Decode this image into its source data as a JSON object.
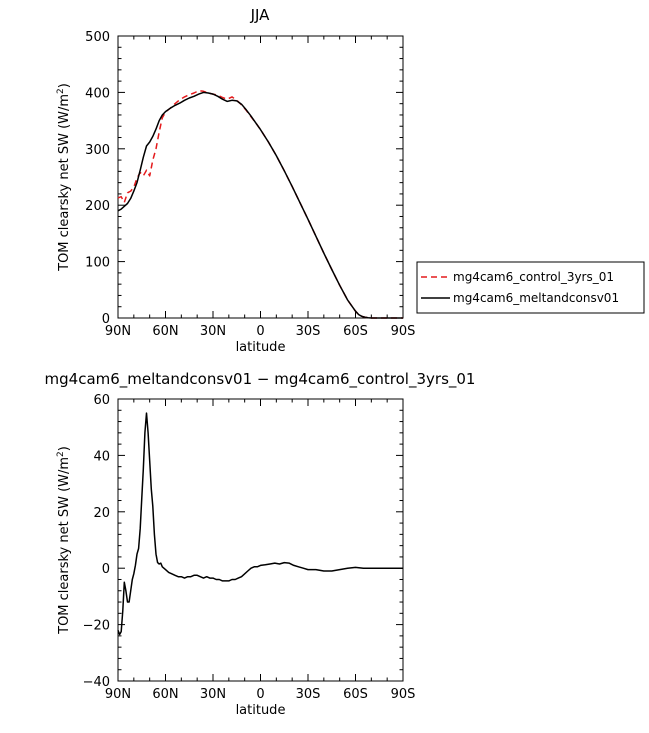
{
  "figure": {
    "top_title": "JJA",
    "bottom_title": "mg4cam6_meltandconsv01 − mg4cam6_control_3yrs_01"
  },
  "chart_data": [
    {
      "type": "line",
      "title": "JJA",
      "xlabel": "latitude",
      "ylabel": "TOM clearsky net SW (W/m²)",
      "ylabel_main": "TOM clearsky net SW (W/m",
      "ylabel_sup": "2",
      "ylabel_close": ")",
      "xlim": [
        90,
        -90
      ],
      "ylim": [
        0,
        500
      ],
      "xticks": [
        90,
        60,
        30,
        0,
        -30,
        -60,
        -90
      ],
      "xtick_labels": [
        "90N",
        "60N",
        "30N",
        "0",
        "30S",
        "60S",
        "90S"
      ],
      "yticks": [
        0,
        100,
        200,
        300,
        400,
        500
      ],
      "ytick_labels": [
        "0",
        "100",
        "200",
        "300",
        "400",
        "500"
      ],
      "legend": "right",
      "series": [
        {
          "name": "mg4cam6_control_3yrs_01",
          "color": "#e41a1c",
          "dash": "dashed",
          "x": [
            90,
            88,
            86,
            84,
            82,
            80,
            78,
            76,
            74,
            72,
            70,
            68,
            66,
            64,
            62,
            60,
            57,
            54,
            51,
            48,
            45,
            42,
            39,
            36,
            33,
            30,
            27,
            24,
            21,
            18,
            15,
            12,
            9,
            6,
            3,
            0,
            -5,
            -10,
            -15,
            -20,
            -25,
            -30,
            -35,
            -40,
            -45,
            -50,
            -55,
            -60,
            -62,
            -64,
            -66,
            -68,
            -70,
            -72,
            -75,
            -80,
            -85,
            -90
          ],
          "y": [
            213,
            215,
            205,
            222,
            225,
            232,
            248,
            258,
            252,
            262,
            252,
            280,
            300,
            330,
            355,
            365,
            372,
            380,
            387,
            392,
            396,
            399,
            403,
            402,
            399,
            397,
            395,
            391,
            388,
            392,
            386,
            378,
            368,
            357,
            346,
            334,
            312,
            288,
            261,
            233,
            204,
            175,
            145,
            115,
            86,
            58,
            32,
            12,
            6,
            3,
            1.5,
            0.5,
            0,
            0,
            0,
            0,
            0,
            0
          ]
        },
        {
          "name": "mg4cam6_meltandconsv01",
          "color": "#000000",
          "dash": "solid",
          "x": [
            90,
            88,
            86,
            84,
            82,
            80,
            78,
            76,
            74,
            72,
            70,
            68,
            66,
            64,
            62,
            60,
            57,
            54,
            51,
            48,
            45,
            42,
            39,
            36,
            33,
            30,
            27,
            24,
            21,
            18,
            15,
            12,
            9,
            6,
            3,
            0,
            -5,
            -10,
            -15,
            -20,
            -25,
            -30,
            -35,
            -40,
            -45,
            -50,
            -55,
            -60,
            -62,
            -64,
            -66,
            -68,
            -70,
            -72,
            -75,
            -80,
            -85,
            -90
          ],
          "y": [
            190,
            193,
            198,
            203,
            212,
            225,
            240,
            262,
            285,
            305,
            312,
            322,
            335,
            350,
            360,
            366,
            372,
            377,
            381,
            386,
            390,
            393,
            397,
            400,
            399,
            397,
            393,
            388,
            384,
            386,
            385,
            379,
            369,
            358,
            346,
            334,
            312,
            288,
            261,
            233,
            204,
            175,
            145,
            115,
            86,
            58,
            32,
            12,
            6,
            3,
            1.5,
            0.5,
            0,
            0,
            0,
            0,
            0,
            0
          ]
        }
      ]
    },
    {
      "type": "line",
      "title": "mg4cam6_meltandconsv01 − mg4cam6_control_3yrs_01",
      "xlabel": "latitude",
      "ylabel": "TOM clearsky net SW (W/m²)",
      "ylabel_main": "TOM clearsky net SW (W/m",
      "ylabel_sup": "2",
      "ylabel_close": ")",
      "xlim": [
        90,
        -90
      ],
      "ylim": [
        -40,
        60
      ],
      "xticks": [
        90,
        60,
        30,
        0,
        -30,
        -60,
        -90
      ],
      "xtick_labels": [
        "90N",
        "60N",
        "30N",
        "0",
        "30S",
        "60S",
        "90S"
      ],
      "yticks": [
        -40,
        -20,
        0,
        20,
        40,
        60
      ],
      "ytick_labels": [
        "−40",
        "−20",
        "0",
        "20",
        "40",
        "60"
      ],
      "series": [
        {
          "name": "",
          "color": "#000000",
          "dash": "solid",
          "x": [
            90,
            89,
            88,
            87,
            86,
            85,
            84,
            83,
            82,
            81,
            80,
            79,
            78,
            77,
            76,
            75,
            74,
            73,
            72,
            71,
            70,
            69,
            68,
            67,
            66,
            65,
            64,
            63,
            62,
            61,
            60,
            58,
            56,
            54,
            52,
            50,
            48,
            46,
            44,
            42,
            40,
            38,
            36,
            34,
            32,
            30,
            28,
            26,
            24,
            22,
            20,
            18,
            16,
            14,
            12,
            10,
            8,
            6,
            4,
            2,
            0,
            -3,
            -6,
            -9,
            -12,
            -15,
            -18,
            -21,
            -24,
            -27,
            -30,
            -35,
            -40,
            -45,
            -50,
            -55,
            -60,
            -65,
            -70,
            -75,
            -80,
            -85,
            -90
          ],
          "y": [
            -22,
            -23.5,
            -22.5,
            -15,
            -5,
            -8,
            -12,
            -12,
            -8,
            -4,
            -2,
            1,
            5,
            7,
            14,
            25,
            35,
            48,
            55,
            48,
            38,
            28,
            22,
            12,
            5,
            2,
            1.5,
            1.8,
            0.5,
            0,
            -0.5,
            -1.5,
            -2,
            -2.5,
            -3,
            -3,
            -3.5,
            -3,
            -3,
            -2.5,
            -2.5,
            -3,
            -3.5,
            -3,
            -3.5,
            -3.5,
            -4,
            -4,
            -4.5,
            -4.5,
            -4.5,
            -4,
            -4,
            -3.5,
            -3,
            -2,
            -1,
            0,
            0.5,
            0.5,
            1,
            1.2,
            1.5,
            1.8,
            1.5,
            2,
            1.8,
            1,
            0.5,
            0,
            -0.5,
            -0.5,
            -1,
            -1,
            -0.5,
            0,
            0.3,
            0,
            0,
            0,
            0,
            0,
            0
          ]
        }
      ]
    }
  ]
}
